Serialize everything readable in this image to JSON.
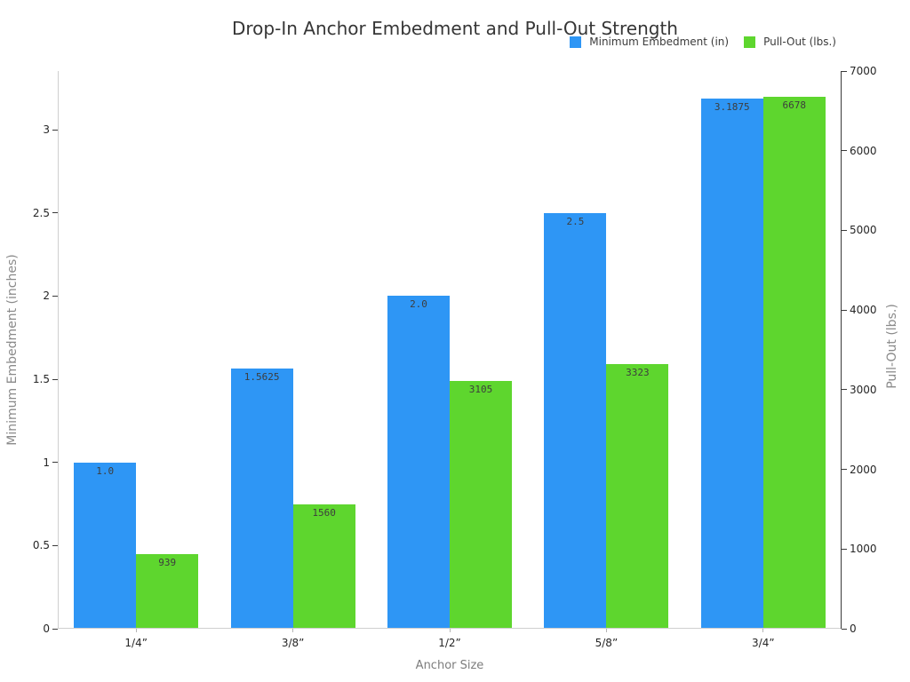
{
  "title": "Drop-In Anchor Embedment and Pull-Out Strength",
  "legend": {
    "items": [
      {
        "label": "Minimum Embedment (in)",
        "color": "#2e96f5"
      },
      {
        "label": "Pull-Out (lbs.)",
        "color": "#5ed62e"
      }
    ]
  },
  "chart_data": {
    "type": "bar",
    "title": "Drop-In Anchor Embedment and Pull-Out Strength",
    "categories": [
      "1/4”",
      "3/8”",
      "1/2”",
      "5/8”",
      "3/4”"
    ],
    "xlabel": "Anchor Size",
    "grid": false,
    "legend_position": "top-right",
    "axes": {
      "left": {
        "label": "Minimum Embedment (inches)",
        "tick_labels": [
          "0",
          "0.5",
          "1",
          "1.5",
          "2",
          "2.5",
          "3"
        ],
        "tick_values": [
          0,
          0.5,
          1,
          1.5,
          2,
          2.5,
          3
        ],
        "lim": [
          0,
          3.3524
        ]
      },
      "right": {
        "label": "Pull-Out (lbs.)",
        "tick_labels": [
          "0",
          "1000",
          "2000",
          "3000",
          "4000",
          "5000",
          "6000",
          "7000"
        ],
        "tick_values": [
          0,
          1000,
          2000,
          3000,
          4000,
          5000,
          6000,
          7000
        ],
        "lim": [
          0,
          7000
        ]
      }
    },
    "series": [
      {
        "name": "Minimum Embedment (in)",
        "axis": "left",
        "color": "#2e96f5",
        "values": [
          1.0,
          1.5625,
          2.0,
          2.5,
          3.1875
        ],
        "labels": [
          "1.0",
          "1.5625",
          "2.0",
          "2.5",
          "3.1875"
        ]
      },
      {
        "name": "Pull-Out (lbs.)",
        "axis": "right",
        "color": "#5ed62e",
        "values": [
          939,
          1560,
          3105,
          3323,
          6678
        ],
        "labels": [
          "939",
          "1560",
          "3105",
          "3323",
          "6678"
        ]
      }
    ]
  },
  "colors": {
    "embedment_blue": "#2e96f5",
    "pullout_green": "#5ed62e",
    "spine_light": "#cfcfcf",
    "spine_dark": "#3a3a3a",
    "tick_label": "#262626",
    "axis_label": "#8a8a8a",
    "bar_label": "#3d3d3d",
    "title": "#363636",
    "background": "#ffffff"
  }
}
